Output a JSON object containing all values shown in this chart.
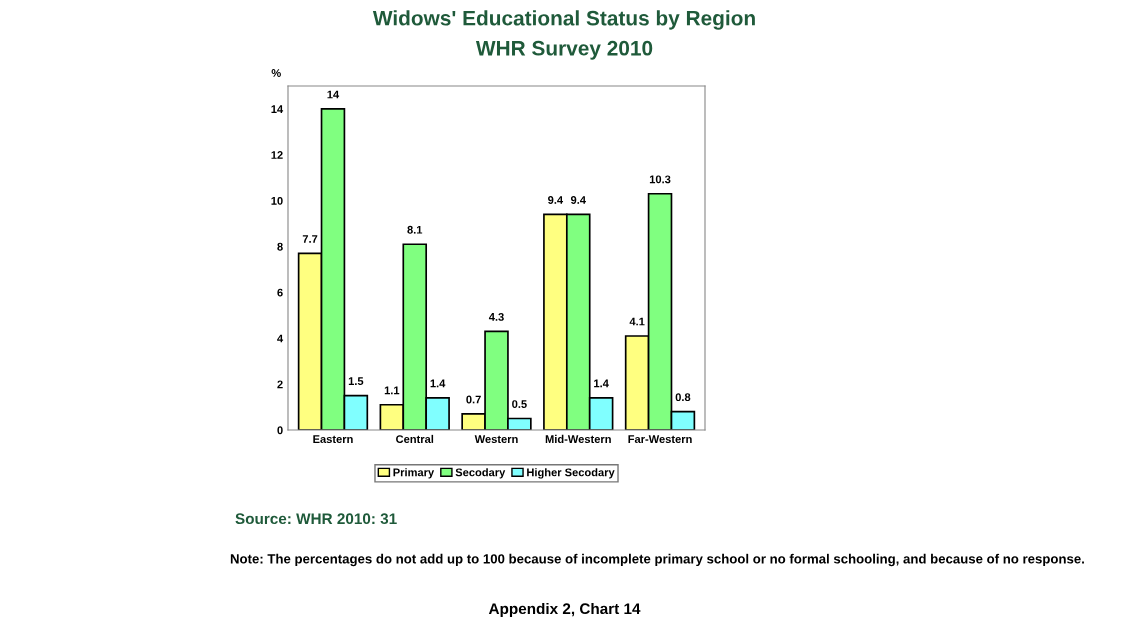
{
  "chart_data": {
    "type": "bar",
    "title": "Widows' Educational Status by Region",
    "subtitle": "WHR Survey 2010",
    "ylabel": "%",
    "categories": [
      "Eastern",
      "Central",
      "Western",
      "Mid-Western",
      "Far-Western"
    ],
    "series": [
      {
        "name": "Primary",
        "color": "#ffff80",
        "values": [
          7.7,
          1.1,
          0.7,
          9.4,
          4.1
        ]
      },
      {
        "name": "Secodary",
        "color": "#80ff80",
        "values": [
          14,
          8.1,
          4.3,
          9.4,
          10.3
        ]
      },
      {
        "name": "Higher Secodary",
        "color": "#80ffff",
        "values": [
          1.5,
          1.4,
          0.5,
          1.4,
          0.8
        ]
      }
    ],
    "ylim": [
      0,
      15
    ],
    "yticks": [
      0,
      2,
      4,
      6,
      8,
      10,
      12,
      14
    ],
    "grid": false,
    "legend": "bottom",
    "data_labels": true,
    "annotations": [
      "Source: WHR 2010: 31",
      "Note: The percentages do not add up to 100 because of incomplete primary school or no formal schooling, and because of no response.",
      "Appendix 2, Chart 14"
    ]
  }
}
